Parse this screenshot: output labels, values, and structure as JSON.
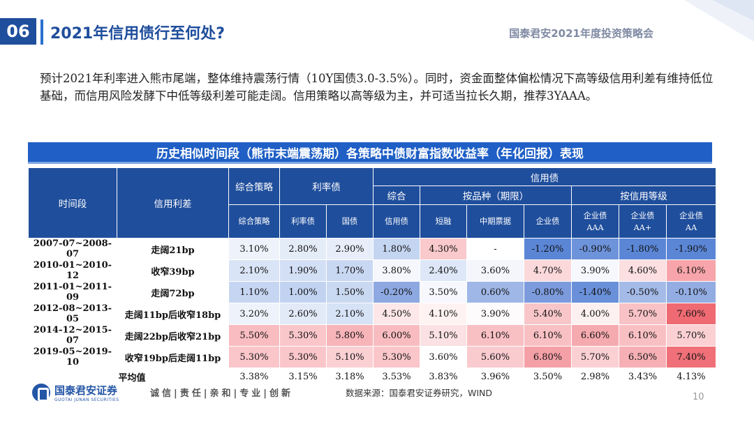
{
  "header": {
    "section_number": "06",
    "title": "2021年信用债行至何处?",
    "conference": "国泰君安2021年度投资策略会"
  },
  "intro": {
    "text": "预计2021年利率进入熊市尾端，整体维持震荡行情（10Y国债3.0-3.5%）。同时，资金面整体偏松情况下高等级信用利差有维持低位基础，而信用风险发酵下中低等级利差可能走阔。信用策略以高等级为主，并可适当拉长久期，推荐3YAAA。"
  },
  "table": {
    "title": "历史相似时间段（熊市末端震荡期）各策略中债财富指数收益率（年化回报）表现",
    "headers": {
      "period": "时间段",
      "spread": "信用利差",
      "composite_group": "综合策略",
      "rate_group": "利率债",
      "credit_group": "信用债",
      "credit_composite_group": "综合",
      "by_type_group": "按品种（期限）",
      "by_rating_group": "按信用等级",
      "cols": [
        [
          "综合策略"
        ],
        [
          "利率债"
        ],
        [
          "国债"
        ],
        [
          "信用债"
        ],
        [
          "短融"
        ],
        [
          "中期票据"
        ],
        [
          "企业债"
        ],
        [
          "企业债",
          "AAA"
        ],
        [
          "企业债",
          "AA+"
        ],
        [
          "企业债",
          "AA"
        ]
      ]
    },
    "rows": [
      {
        "period": "2007-07~2008-07",
        "spread": "走阔21bp",
        "values": [
          "3.10%",
          "2.80%",
          "2.90%",
          "1.80%",
          "4.30%",
          "-",
          "-1.20%",
          "-0.90%",
          "-1.80%",
          "-1.90%"
        ]
      },
      {
        "period": "2010-01~2010-12",
        "spread": "收窄39bp",
        "values": [
          "2.10%",
          "1.90%",
          "1.70%",
          "3.80%",
          "2.40%",
          "3.60%",
          "4.70%",
          "3.90%",
          "4.60%",
          "6.10%"
        ]
      },
      {
        "period": "2011-01~2011-09",
        "spread": "走阔72bp",
        "values": [
          "1.10%",
          "1.00%",
          "1.50%",
          "-0.20%",
          "3.50%",
          "0.60%",
          "-0.80%",
          "-1.40%",
          "-0.50%",
          "-0.10%"
        ]
      },
      {
        "period": "2012-08~2013-05",
        "spread": "走阔11bp后收窄18bp",
        "values": [
          "3.20%",
          "2.60%",
          "2.10%",
          "4.50%",
          "4.10%",
          "3.90%",
          "5.40%",
          "4.00%",
          "5.70%",
          "7.60%"
        ]
      },
      {
        "period": "2014-12~2015-07",
        "spread": "走阔22bp后收窄21bp",
        "values": [
          "5.50%",
          "5.30%",
          "5.80%",
          "6.00%",
          "5.10%",
          "6.10%",
          "6.10%",
          "6.60%",
          "6.10%",
          "5.70%"
        ]
      },
      {
        "period": "2019-05~2019-10",
        "spread": "收窄19bp后走阔11bp",
        "values": [
          "5.30%",
          "5.30%",
          "5.10%",
          "5.30%",
          "3.60%",
          "5.60%",
          "6.80%",
          "5.70%",
          "6.50%",
          "7.40%"
        ]
      },
      {
        "period": "",
        "spread": "平均值",
        "values": [
          "3.38%",
          "3.15%",
          "3.18%",
          "3.53%",
          "3.83%",
          "3.96%",
          "3.50%",
          "2.98%",
          "3.43%",
          "4.13%"
        ]
      }
    ],
    "cell_colors": [
      [
        "#eef3fb",
        "#e4ecf8",
        "#e7eef9",
        "#c4d5f1",
        "#f9c9cc",
        "#ffffff",
        "#5b86d6",
        "#6d93da",
        "#5b86d6",
        "#5b86d6"
      ],
      [
        "#d9e4f6",
        "#d3dff5",
        "#c9d8f2",
        "#f5f7fc",
        "#dde7f7",
        "#f4f6fc",
        "#fbd8da",
        "#f7f8fd",
        "#fbdfe1",
        "#f7a5aa"
      ],
      [
        "#c6d6f2",
        "#c2d3f1",
        "#cad9f2",
        "#8ea9e2",
        "#f6f8fd",
        "#9fb7e6",
        "#7c9bdd",
        "#6a90d9",
        "#a4bae7",
        "#93ade3"
      ],
      [
        "#eef3fb",
        "#e2eaf8",
        "#d6e2f5",
        "#fde7e8",
        "#fff2f3",
        "#fdfbfc",
        "#f8c6c9",
        "#fdf0f0",
        "#f9c2c6",
        "#ef6a72"
      ],
      [
        "#f9bcc0",
        "#fac6ca",
        "#f7b4b9",
        "#f8bcc0",
        "#fbe1e3",
        "#f9c0c4",
        "#f9c0c4",
        "#f5aaaf",
        "#f9c0c4",
        "#fbd0d3"
      ],
      [
        "#fac6ca",
        "#fac6ca",
        "#fbd0d3",
        "#fac6ca",
        "#ffffff",
        "#f9cbcf",
        "#f4a0a6",
        "#fbd0d3",
        "#f6b0b5",
        "#ef7078"
      ],
      [
        "#ffffff",
        "#ffffff",
        "#ffffff",
        "#ffffff",
        "#ffffff",
        "#ffffff",
        "#ffffff",
        "#ffffff",
        "#ffffff",
        "#ffffff"
      ]
    ]
  },
  "footer": {
    "logo_cn": "国泰君安证券",
    "logo_en": "GUOTAI JUNAN SECURITIES",
    "motto": "诚信|责任|亲和|专业|创新",
    "source": "数据来源：国泰君安证券研究，WIND",
    "page": "10"
  },
  "colors": {
    "brand_blue": "#1f4e9c",
    "banner_blue": "#1f5fc6"
  }
}
